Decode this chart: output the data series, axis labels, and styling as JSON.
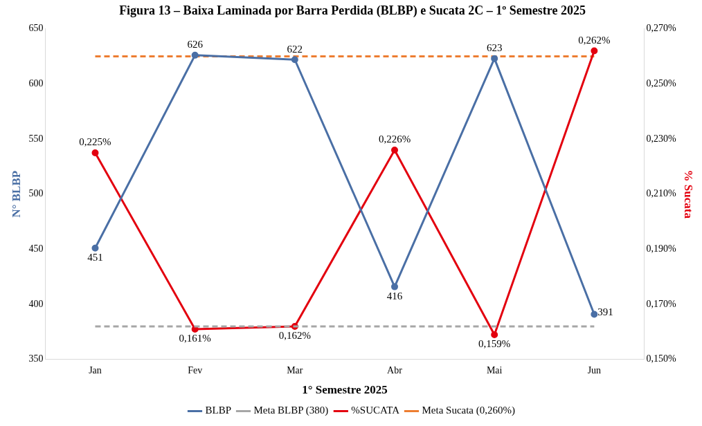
{
  "chart_data": {
    "type": "line",
    "title": "Figura 13 – Baixa Laminada por Barra Perdida (BLBP) e Sucata 2C – 1º Semestre 2025",
    "xlabel": "1° Semestre 2025",
    "ylabel": "N° BLBP",
    "y2label": "% Sucata",
    "categories": [
      "Jan",
      "Fev",
      "Mar",
      "Abr",
      "Mai",
      "Jun"
    ],
    "series": [
      {
        "name": "BLBP",
        "color": "#4a6fa5",
        "values": [
          451,
          626,
          622,
          416,
          623,
          391
        ],
        "value_labels": [
          "451",
          "626",
          "622",
          "416",
          "623",
          "391"
        ],
        "marker": "circle",
        "line_style": "solid"
      },
      {
        "name": "Meta BLBP (380)",
        "color": "#a6a6a6",
        "values": [
          380,
          380,
          380,
          380,
          380,
          380
        ],
        "marker": "none",
        "line_style": "dashed"
      },
      {
        "name": "%SUCATA",
        "color": "#e3000f",
        "axis": "y2",
        "values": [
          0.225,
          0.161,
          0.162,
          0.226,
          0.159,
          0.262
        ],
        "value_labels": [
          "0,225%",
          "0,161%",
          "0,162%",
          "0,226%",
          "0,159%",
          "0,262%"
        ],
        "marker": "circle",
        "line_style": "solid"
      },
      {
        "name": "Meta Sucata (0,260%)",
        "color": "#ed7d31",
        "axis": "y2",
        "values": [
          0.26,
          0.26,
          0.26,
          0.26,
          0.26,
          0.26
        ],
        "marker": "none",
        "line_style": "dashed"
      }
    ],
    "ylim": [
      350,
      650
    ],
    "yticks": [
      350,
      400,
      450,
      500,
      550,
      600,
      650
    ],
    "y2lim": [
      0.15,
      0.27
    ],
    "y2ticks": [
      {
        "value": 0.15,
        "label": "0,150%"
      },
      {
        "value": 0.17,
        "label": "0,170%"
      },
      {
        "value": 0.19,
        "label": "0,190%"
      },
      {
        "value": 0.21,
        "label": "0,210%"
      },
      {
        "value": 0.23,
        "label": "0,230%"
      },
      {
        "value": 0.25,
        "label": "0,250%"
      },
      {
        "value": 0.27,
        "label": "0,270%"
      }
    ],
    "grid": false,
    "legend": "bottom"
  }
}
